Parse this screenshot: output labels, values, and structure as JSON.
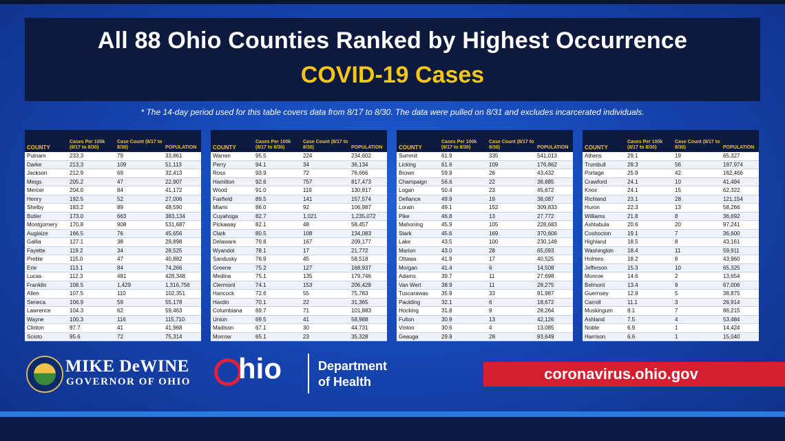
{
  "title": "All 88 Ohio Counties Ranked by Highest Occurrence",
  "subtitle": "COVID-19 Cases",
  "footnote": "* The 14-day period used for this table covers data from 8/17 to 8/30. The data were pulled on 8/31 and excludes incarcerated individuals.",
  "table_headers": {
    "county": "COUNTY",
    "cases_per_100k": "Cases Per 100k (8/17 to 8/30)",
    "case_count": "Case Count (8/17 to 8/30)",
    "population": "POPULATION"
  },
  "tables": [
    [
      [
        "Putnam",
        "233.3",
        "79",
        "33,861"
      ],
      [
        "Darke",
        "213.3",
        "109",
        "51,113"
      ],
      [
        "Jackson",
        "212.9",
        "69",
        "32,413"
      ],
      [
        "Meigs",
        "205.2",
        "47",
        "22,907"
      ],
      [
        "Mercer",
        "204.0",
        "84",
        "41,172"
      ],
      [
        "Henry",
        "192.5",
        "52",
        "27,006"
      ],
      [
        "Shelby",
        "183.2",
        "89",
        "48,590"
      ],
      [
        "Butler",
        "173.0",
        "663",
        "383,134"
      ],
      [
        "Montgomery",
        "170.8",
        "908",
        "531,687"
      ],
      [
        "Auglaize",
        "166.5",
        "76",
        "45,656"
      ],
      [
        "Gallia",
        "127.1",
        "38",
        "29,898"
      ],
      [
        "Fayette",
        "119.2",
        "34",
        "28,525"
      ],
      [
        "Preble",
        "115.0",
        "47",
        "40,882"
      ],
      [
        "Erie",
        "113.1",
        "84",
        "74,266"
      ],
      [
        "Lucas",
        "112.3",
        "481",
        "428,348"
      ],
      [
        "Franklin",
        "108.5",
        "1,429",
        "1,316,756"
      ],
      [
        "Allen",
        "107.5",
        "110",
        "102,351"
      ],
      [
        "Seneca",
        "106.9",
        "59",
        "55,178"
      ],
      [
        "Lawrence",
        "104.3",
        "62",
        "59,463"
      ],
      [
        "Wayne",
        "100.3",
        "116",
        "115,710"
      ],
      [
        "Clinton",
        "97.7",
        "41",
        "41,968"
      ],
      [
        "Scioto",
        "95.6",
        "72",
        "75,314"
      ]
    ],
    [
      [
        "Warren",
        "95.5",
        "224",
        "234,602"
      ],
      [
        "Perry",
        "94.1",
        "34",
        "36,134"
      ],
      [
        "Ross",
        "93.9",
        "72",
        "76,666"
      ],
      [
        "Hamilton",
        "92.6",
        "757",
        "817,473"
      ],
      [
        "Wood",
        "91.0",
        "119",
        "130,817"
      ],
      [
        "Fairfield",
        "89.5",
        "141",
        "157,574"
      ],
      [
        "Miami",
        "86.0",
        "92",
        "106,987"
      ],
      [
        "Cuyahoga",
        "82.7",
        "1,021",
        "1,235,072"
      ],
      [
        "Pickaway",
        "82.1",
        "48",
        "58,457"
      ],
      [
        "Clark",
        "80.5",
        "108",
        "134,083"
      ],
      [
        "Delaware",
        "79.8",
        "167",
        "209,177"
      ],
      [
        "Wyandot",
        "78.1",
        "17",
        "21,772"
      ],
      [
        "Sandusky",
        "76.9",
        "45",
        "58,518"
      ],
      [
        "Greene",
        "75.2",
        "127",
        "168,937"
      ],
      [
        "Medina",
        "75.1",
        "135",
        "179,746"
      ],
      [
        "Clermont",
        "74.1",
        "153",
        "206,428"
      ],
      [
        "Hancock",
        "72.6",
        "55",
        "75,783"
      ],
      [
        "Hardin",
        "70.1",
        "22",
        "31,365"
      ],
      [
        "Columbiana",
        "69.7",
        "71",
        "101,883"
      ],
      [
        "Union",
        "69.5",
        "41",
        "58,988"
      ],
      [
        "Madison",
        "67.1",
        "30",
        "44,731"
      ],
      [
        "Morrow",
        "65.1",
        "23",
        "35,328"
      ]
    ],
    [
      [
        "Summit",
        "61.9",
        "335",
        "541,013"
      ],
      [
        "Licking",
        "61.6",
        "109",
        "176,862"
      ],
      [
        "Brown",
        "59.9",
        "26",
        "43,432"
      ],
      [
        "Champaign",
        "56.6",
        "22",
        "38,885"
      ],
      [
        "Logan",
        "50.4",
        "23",
        "45,672"
      ],
      [
        "Defiance",
        "49.9",
        "19",
        "38,087"
      ],
      [
        "Lorain",
        "49.1",
        "152",
        "309,833"
      ],
      [
        "Pike",
        "46.8",
        "13",
        "27,772"
      ],
      [
        "Mahoning",
        "45.9",
        "105",
        "228,683"
      ],
      [
        "Stark",
        "45.6",
        "169",
        "370,606"
      ],
      [
        "Lake",
        "43.5",
        "100",
        "230,149"
      ],
      [
        "Marion",
        "43.0",
        "28",
        "65,093"
      ],
      [
        "Ottawa",
        "41.9",
        "17",
        "40,525"
      ],
      [
        "Morgan",
        "41.4",
        "6",
        "14,508"
      ],
      [
        "Adams",
        "39.7",
        "11",
        "27,698"
      ],
      [
        "Van Wert",
        "38.9",
        "11",
        "28,275"
      ],
      [
        "Tuscarawas",
        "35.9",
        "33",
        "91,987"
      ],
      [
        "Paulding",
        "32.1",
        "6",
        "18,672"
      ],
      [
        "Hocking",
        "31.8",
        "9",
        "28,264"
      ],
      [
        "Fulton",
        "30.9",
        "13",
        "42,126"
      ],
      [
        "Vinton",
        "30.6",
        "4",
        "13,085"
      ],
      [
        "Geauga",
        "29.9",
        "28",
        "93,649"
      ]
    ],
    [
      [
        "Athens",
        "29.1",
        "19",
        "65,327"
      ],
      [
        "Trumbull",
        "28.3",
        "56",
        "197,974"
      ],
      [
        "Portage",
        "25.9",
        "42",
        "162,466"
      ],
      [
        "Crawford",
        "24.1",
        "10",
        "41,494"
      ],
      [
        "Knox",
        "24.1",
        "15",
        "62,322"
      ],
      [
        "Richland",
        "23.1",
        "28",
        "121,154"
      ],
      [
        "Huron",
        "22.3",
        "13",
        "58,266"
      ],
      [
        "Williams",
        "21.8",
        "8",
        "36,692"
      ],
      [
        "Ashtabula",
        "20.6",
        "20",
        "97,241"
      ],
      [
        "Coshocton",
        "19.1",
        "7",
        "36,600"
      ],
      [
        "Highland",
        "18.5",
        "8",
        "43,161"
      ],
      [
        "Washington",
        "18.4",
        "11",
        "59,911"
      ],
      [
        "Holmes",
        "18.2",
        "8",
        "43,960"
      ],
      [
        "Jefferson",
        "15.3",
        "10",
        "65,325"
      ],
      [
        "Monroe",
        "14.6",
        "2",
        "13,654"
      ],
      [
        "Belmont",
        "13.4",
        "9",
        "67,006"
      ],
      [
        "Guernsey",
        "12.9",
        "5",
        "38,875"
      ],
      [
        "Carroll",
        "11.1",
        "3",
        "26,914"
      ],
      [
        "Muskingum",
        "8.1",
        "7",
        "86,215"
      ],
      [
        "Ashland",
        "7.5",
        "4",
        "53,484"
      ],
      [
        "Noble",
        "6.9",
        "1",
        "14,424"
      ],
      [
        "Harrison",
        "6.6",
        "1",
        "15,040"
      ]
    ]
  ],
  "footer": {
    "governor_name": "MIKE DeWINE",
    "governor_title": "GOVERNOR OF OHIO",
    "ohio_logo_text": "hio",
    "department_line1": "Department",
    "department_line2": "of Health",
    "url": "coronavirus.ohio.gov"
  },
  "colors": {
    "background": "#1646b3",
    "panel": "#0d1a3d",
    "accent_yellow": "#f5c518",
    "banner_red": "#d51f2f"
  }
}
